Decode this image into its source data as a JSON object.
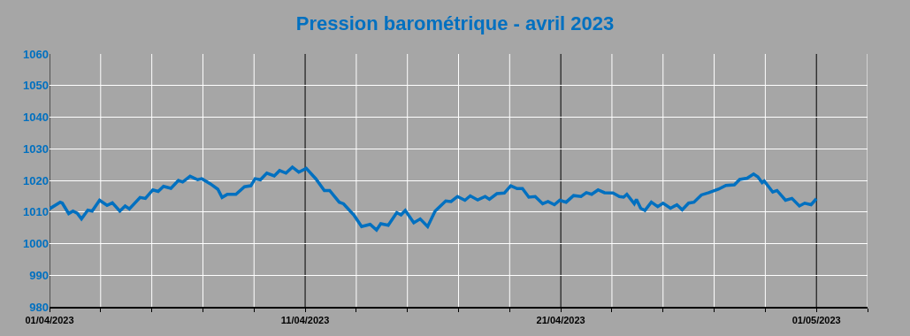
{
  "chart_data": {
    "type": "line",
    "title": "Pression barométrique - avril 2023",
    "x": [
      "2023-04-01T00:00",
      "2023-04-01T10:00",
      "2023-04-01T12:00",
      "2023-04-01T18:00",
      "2023-04-01T22:00",
      "2023-04-02T02:00",
      "2023-04-02T06:00",
      "2023-04-02T12:00",
      "2023-04-02T16:00",
      "2023-04-02T23:00",
      "2023-04-03T06:00",
      "2023-04-03T11:00",
      "2023-04-03T18:00",
      "2023-04-03T23:00",
      "2023-04-04T03:00",
      "2023-04-04T13:00",
      "2023-04-04T18:00",
      "2023-04-05T01:00",
      "2023-04-05T06:00",
      "2023-04-05T11:00",
      "2023-04-05T18:00",
      "2023-04-06T01:00",
      "2023-04-06T05:00",
      "2023-04-06T12:00",
      "2023-04-06T19:00",
      "2023-04-06T23:00",
      "2023-04-07T07:00",
      "2023-04-07T14:00",
      "2023-04-07T18:00",
      "2023-04-07T23:00",
      "2023-04-08T07:00",
      "2023-04-08T15:00",
      "2023-04-08T21:00",
      "2023-04-09T01:00",
      "2023-04-09T06:00",
      "2023-04-09T12:00",
      "2023-04-09T19:00",
      "2023-04-10T00:00",
      "2023-04-10T06:00",
      "2023-04-10T12:00",
      "2023-04-10T18:00",
      "2023-04-11T01:00",
      "2023-04-11T10:00",
      "2023-04-11T18:00",
      "2023-04-11T23:00",
      "2023-04-12T08:00",
      "2023-04-12T12:00",
      "2023-04-12T22:00",
      "2023-04-13T05:00",
      "2023-04-13T13:00",
      "2023-04-13T19:00",
      "2023-04-13T23:00",
      "2023-04-14T06:00",
      "2023-04-14T14:00",
      "2023-04-14T18:00",
      "2023-04-14T22:00",
      "2023-04-15T06:00",
      "2023-04-15T12:00",
      "2023-04-15T19:00",
      "2023-04-16T02:00",
      "2023-04-16T12:00",
      "2023-04-16T17:00",
      "2023-04-16T23:00",
      "2023-04-17T06:00",
      "2023-04-17T11:00",
      "2023-04-17T18:00",
      "2023-04-18T01:00",
      "2023-04-18T05:00",
      "2023-04-18T12:00",
      "2023-04-18T19:00",
      "2023-04-19T01:00",
      "2023-04-19T07:00",
      "2023-04-19T12:00",
      "2023-04-19T18:00",
      "2023-04-20T00:00",
      "2023-04-20T07:00",
      "2023-04-20T12:00",
      "2023-04-20T18:00",
      "2023-04-20T23:00",
      "2023-04-21T05:00",
      "2023-04-21T12:00",
      "2023-04-21T19:00",
      "2023-04-22T00:00",
      "2023-04-22T05:00",
      "2023-04-22T11:00",
      "2023-04-22T17:00",
      "2023-04-23T01:00",
      "2023-04-23T07:00",
      "2023-04-23T11:00",
      "2023-04-23T14:00",
      "2023-04-23T21:00",
      "2023-04-23T23:00",
      "2023-04-24T03:00",
      "2023-04-24T07:00",
      "2023-04-24T13:00",
      "2023-04-24T19:00",
      "2023-04-25T00:00",
      "2023-04-25T07:00",
      "2023-04-25T13:00",
      "2023-04-25T18:00",
      "2023-04-26T00:00",
      "2023-04-26T05:00",
      "2023-04-26T12:00",
      "2023-04-26T19:00",
      "2023-04-27T04:00",
      "2023-04-27T11:00",
      "2023-04-27T19:00",
      "2023-04-28T00:00",
      "2023-04-28T07:00",
      "2023-04-28T13:00",
      "2023-04-28T17:00",
      "2023-04-28T21:00",
      "2023-04-28T23:00",
      "2023-04-29T07:00",
      "2023-04-29T11:00",
      "2023-04-29T19:00",
      "2023-04-30T01:00",
      "2023-04-30T08:00",
      "2023-04-30T13:00",
      "2023-04-30T19:00",
      "2023-05-01T00:00"
    ],
    "series": [
      {
        "color": "#0070c0",
        "values": [
          1011.0,
          1013.1,
          1012.8,
          1009.5,
          1010.3,
          1009.6,
          1007.8,
          1010.6,
          1010.3,
          1013.7,
          1012.1,
          1012.9,
          1010.3,
          1011.9,
          1011.0,
          1014.6,
          1014.3,
          1017.0,
          1016.5,
          1018.1,
          1017.5,
          1020.0,
          1019.5,
          1021.3,
          1020.2,
          1020.5,
          1018.9,
          1017.2,
          1014.6,
          1015.6,
          1015.6,
          1018.0,
          1018.3,
          1020.5,
          1020.2,
          1022.3,
          1021.4,
          1023.1,
          1022.3,
          1024.2,
          1022.6,
          1023.8,
          1020.5,
          1016.8,
          1016.8,
          1013.1,
          1012.6,
          1008.9,
          1005.4,
          1006.1,
          1004.3,
          1006.3,
          1005.8,
          1009.8,
          1009.1,
          1010.5,
          1006.6,
          1007.8,
          1005.4,
          1010.3,
          1013.5,
          1013.3,
          1014.9,
          1013.7,
          1015.1,
          1013.8,
          1014.9,
          1014.0,
          1015.8,
          1016.0,
          1018.3,
          1017.4,
          1017.4,
          1014.7,
          1014.9,
          1012.6,
          1013.3,
          1012.3,
          1013.7,
          1013.1,
          1015.2,
          1014.9,
          1016.1,
          1015.6,
          1017.0,
          1016.1,
          1016.0,
          1014.9,
          1014.7,
          1015.6,
          1012.6,
          1014.0,
          1011.2,
          1010.5,
          1013.1,
          1011.7,
          1012.8,
          1011.2,
          1012.3,
          1010.7,
          1012.8,
          1013.1,
          1015.4,
          1016.1,
          1017.2,
          1018.4,
          1018.6,
          1020.3,
          1020.7,
          1022.0,
          1021.1,
          1019.3,
          1019.8,
          1016.3,
          1016.8,
          1013.7,
          1014.3,
          1011.9,
          1012.8,
          1012.3,
          1014.2
        ]
      }
    ],
    "xlim": [
      "2023-04-01",
      "2023-05-03"
    ],
    "xticks": [
      {
        "value": "2023-04-01",
        "label": "01/04/2023"
      },
      {
        "value": "2023-04-03",
        "label": null
      },
      {
        "value": "2023-04-05",
        "label": null
      },
      {
        "value": "2023-04-07",
        "label": null
      },
      {
        "value": "2023-04-09",
        "label": null
      },
      {
        "value": "2023-04-11",
        "label": "11/04/2023"
      },
      {
        "value": "2023-04-13",
        "label": null
      },
      {
        "value": "2023-04-15",
        "label": null
      },
      {
        "value": "2023-04-17",
        "label": null
      },
      {
        "value": "2023-04-19",
        "label": null
      },
      {
        "value": "2023-04-21",
        "label": "21/04/2023"
      },
      {
        "value": "2023-04-23",
        "label": null
      },
      {
        "value": "2023-04-25",
        "label": null
      },
      {
        "value": "2023-04-27",
        "label": null
      },
      {
        "value": "2023-04-29",
        "label": null
      },
      {
        "value": "2023-05-01",
        "label": "01/05/2023"
      },
      {
        "value": "2023-05-03",
        "label": null
      }
    ],
    "ylim": [
      980,
      1060
    ],
    "yticks": [
      980,
      990,
      1000,
      1010,
      1020,
      1030,
      1040,
      1050,
      1060
    ],
    "grid": true,
    "marker": "none",
    "line_style": "solid"
  }
}
